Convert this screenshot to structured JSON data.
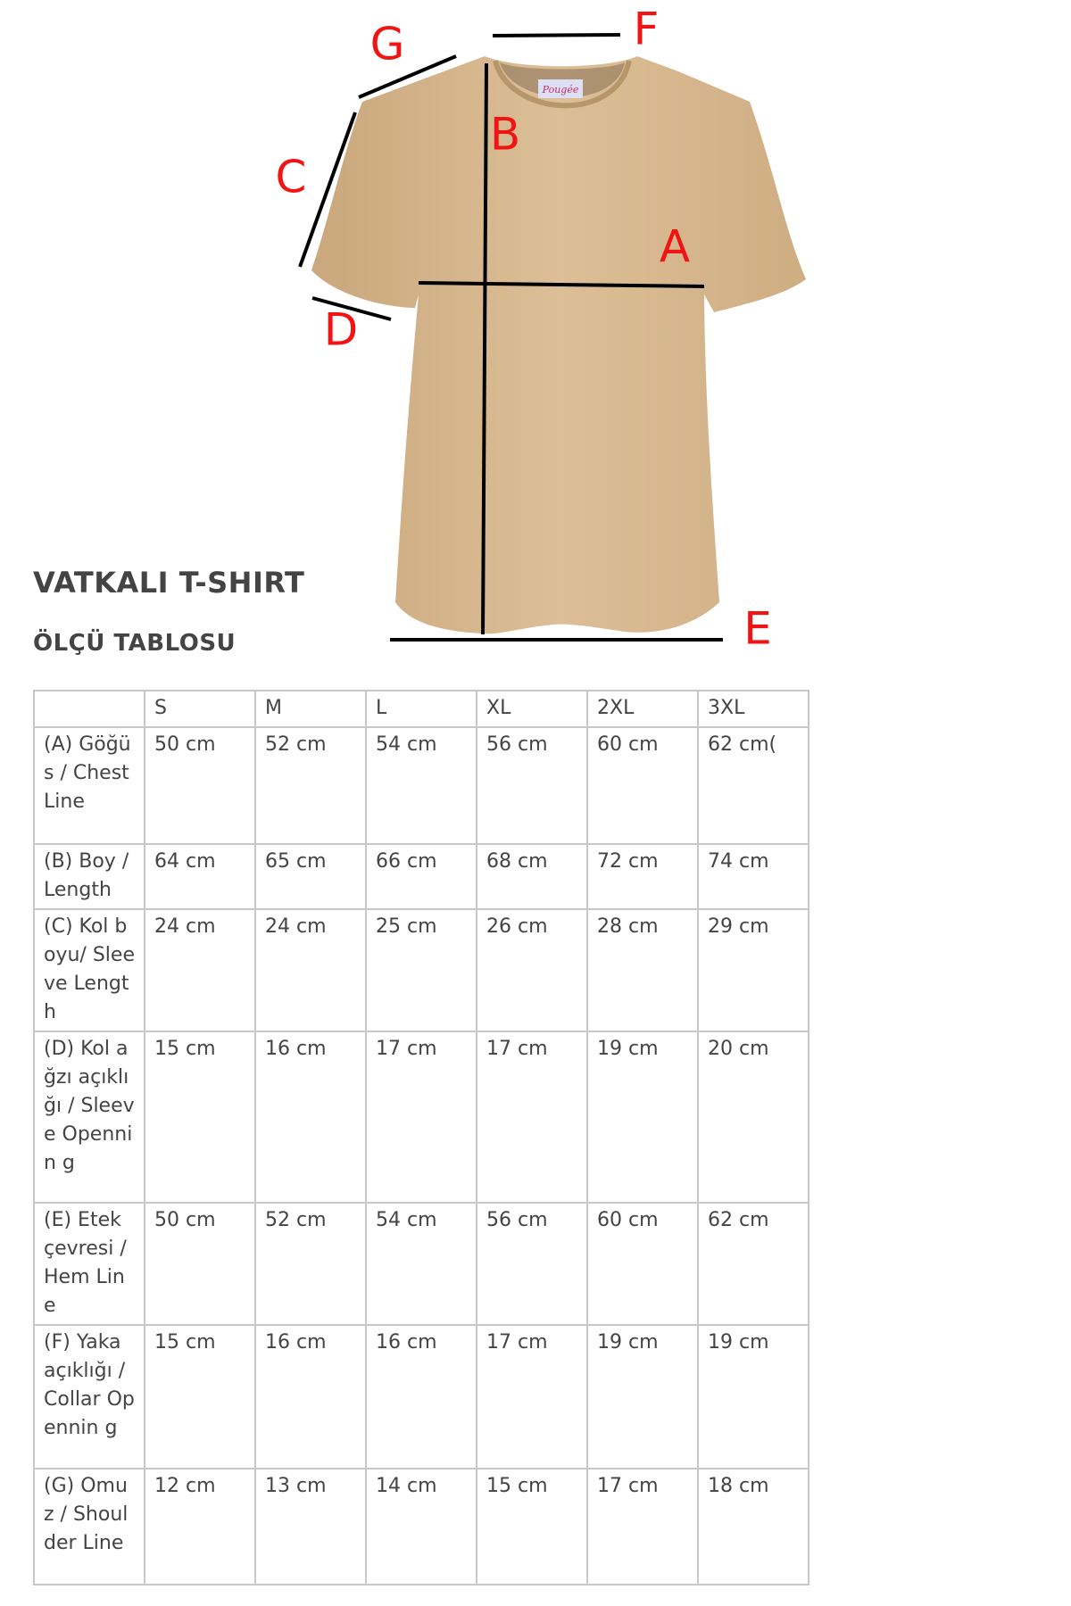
{
  "product": {
    "title": "VATKALI T-SHIRT",
    "subtitle": "ÖLÇÜ TABLOSU",
    "brand_tag": "Pougée"
  },
  "diagram": {
    "labels": {
      "A": "A",
      "B": "B",
      "C": "C",
      "D": "D",
      "E": "E",
      "F": "F",
      "G": "G"
    },
    "label_color": "#f01414",
    "shirt_color": "#d9b990"
  },
  "size_table": {
    "headers": [
      "",
      "S",
      "M",
      "L",
      "XL",
      "2XL",
      "3XL"
    ],
    "rows": [
      {
        "label": " (A) Göğüs / Chest Line",
        "values": [
          "50 cm",
          "52 cm",
          "54 cm",
          "56 cm",
          "60 cm",
          "62 cm("
        ]
      },
      {
        "label": "(B) Boy / Length",
        "values": [
          "64 cm",
          "65 cm",
          "66 cm",
          "68 cm",
          "72 cm",
          "74 cm"
        ]
      },
      {
        "label": "(C) Kol boyu/ Sleeve Length",
        "values": [
          "24 cm",
          "24 cm",
          "25 cm",
          "26 cm",
          "28 cm",
          "29 cm"
        ]
      },
      {
        "label": "(D) Kol ağzı açıklığı / Sleeve Opennin g",
        "values": [
          "15 cm",
          "16 cm",
          "17 cm",
          "17 cm",
          "19 cm",
          "20 cm"
        ]
      },
      {
        "label": "(E) Etek çevresi / Hem Line",
        "values": [
          "50 cm",
          "52 cm",
          "54 cm",
          "56 cm",
          "60 cm",
          "62 cm"
        ]
      },
      {
        "label": "(F) Yaka açıklığı / Collar Opennin g",
        "values": [
          "15 cm",
          "16 cm",
          "16 cm",
          "17 cm",
          "19 cm",
          "19 cm"
        ]
      },
      {
        "label": "(G) Omuz / Shoulder Line",
        "values": [
          "12 cm",
          "13 cm",
          "14 cm",
          "15 cm",
          "17 cm",
          "18 cm"
        ]
      }
    ]
  }
}
